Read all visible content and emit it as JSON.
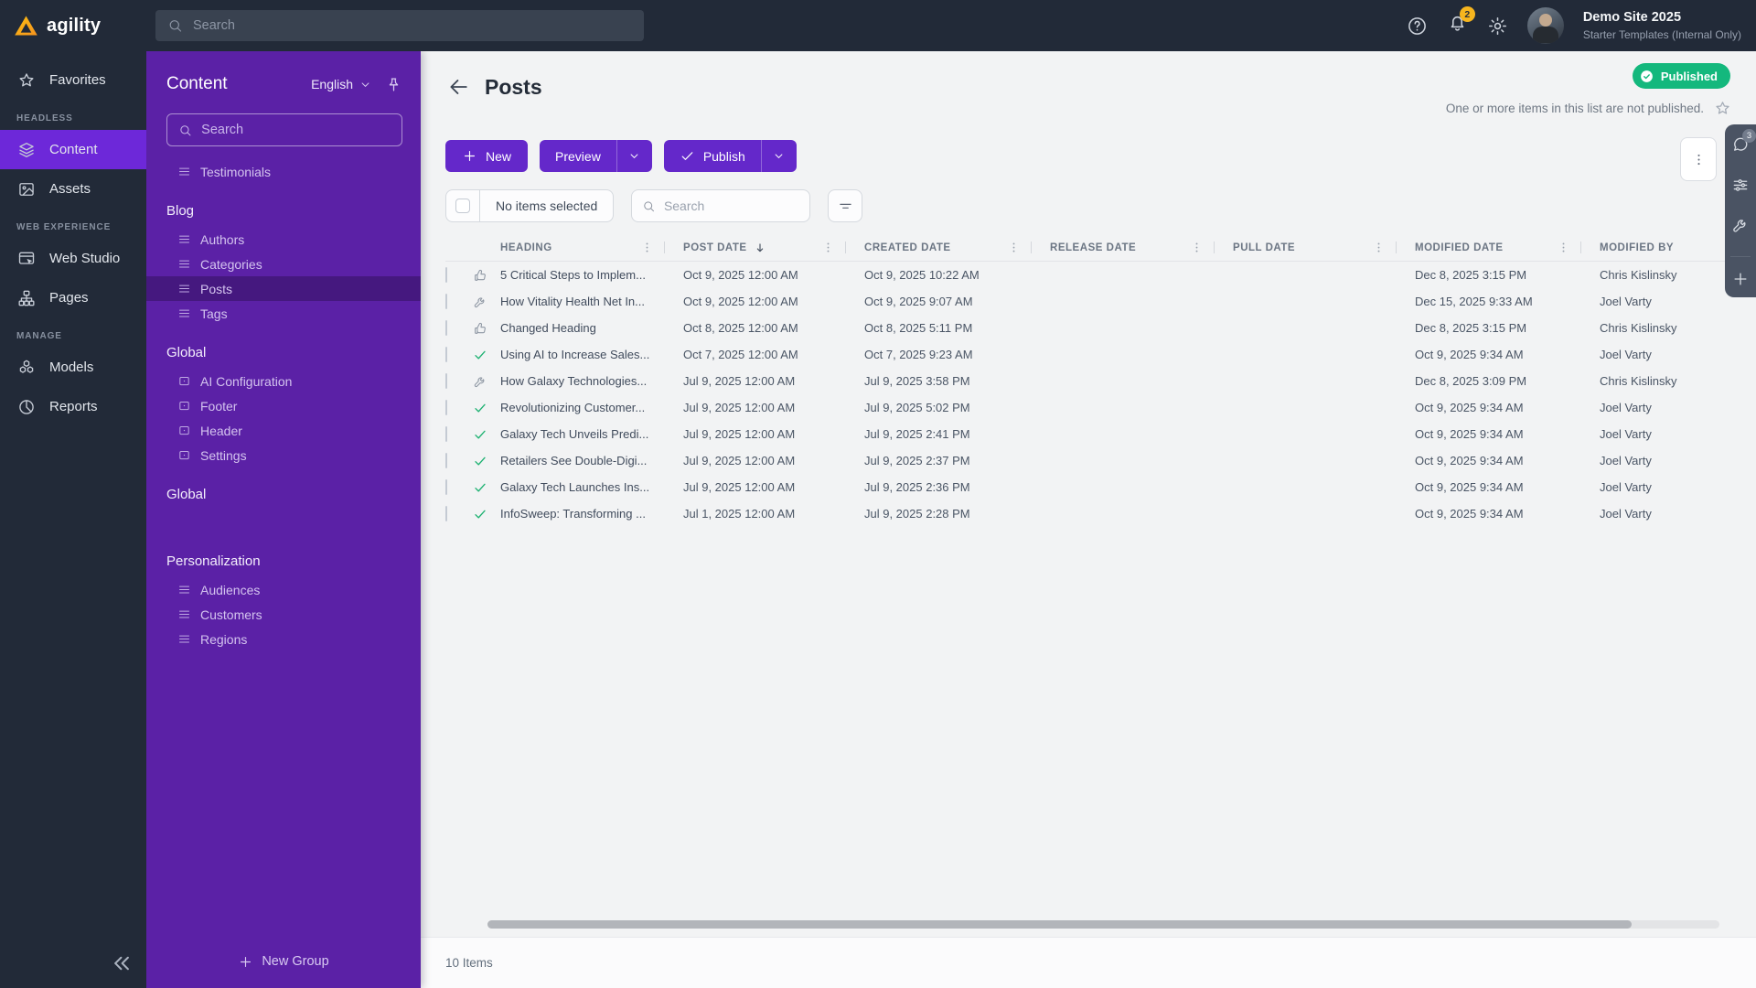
{
  "app": {
    "logo_text": "agility"
  },
  "topbar": {
    "search_placeholder": "Search",
    "notification_count": "2",
    "site_name": "Demo Site 2025",
    "site_plan": "Starter Templates (Internal Only)"
  },
  "left_nav": {
    "sections": [
      {
        "label": "",
        "items": [
          {
            "id": "favorites",
            "label": "Favorites",
            "icon": "star",
            "active": false
          }
        ]
      },
      {
        "label": "HEADLESS",
        "items": [
          {
            "id": "content",
            "label": "Content",
            "icon": "layers",
            "active": true
          },
          {
            "id": "assets",
            "label": "Assets",
            "icon": "image",
            "active": false
          }
        ]
      },
      {
        "label": "WEB EXPERIENCE",
        "items": [
          {
            "id": "web-studio",
            "label": "Web Studio",
            "icon": "browser",
            "active": false
          },
          {
            "id": "pages",
            "label": "Pages",
            "icon": "sitemap",
            "active": false
          }
        ]
      },
      {
        "label": "MANAGE",
        "items": [
          {
            "id": "models",
            "label": "Models",
            "icon": "cubes",
            "active": false
          },
          {
            "id": "reports",
            "label": "Reports",
            "icon": "pie",
            "active": false
          }
        ]
      }
    ]
  },
  "content_panel": {
    "title": "Content",
    "language": "English",
    "search_placeholder": "Search",
    "new_group_label": "New Group",
    "groups": [
      {
        "header": "",
        "items": [
          {
            "label": "Testimonials",
            "icon": "list",
            "active": false
          }
        ]
      },
      {
        "header": "Blog",
        "items": [
          {
            "label": "Authors",
            "icon": "list",
            "active": false
          },
          {
            "label": "Categories",
            "icon": "list",
            "active": false
          },
          {
            "label": "Posts",
            "icon": "list",
            "active": true
          },
          {
            "label": "Tags",
            "icon": "list",
            "active": false
          }
        ]
      },
      {
        "header": "Global",
        "items": [
          {
            "label": "AI Configuration",
            "icon": "single-item",
            "active": false
          },
          {
            "label": "Footer",
            "icon": "single-item",
            "active": false
          },
          {
            "label": "Header",
            "icon": "single-item",
            "active": false
          },
          {
            "label": "Settings",
            "icon": "single-item",
            "active": false
          }
        ]
      },
      {
        "header": "Global",
        "items": []
      },
      {
        "header": "Personalization",
        "items": [
          {
            "label": "Audiences",
            "icon": "list",
            "active": false
          },
          {
            "label": "Customers",
            "icon": "list",
            "active": false
          },
          {
            "label": "Regions",
            "icon": "list",
            "active": false
          }
        ]
      }
    ]
  },
  "main": {
    "title": "Posts",
    "status_badge": "Published",
    "status_note": "One or more items in this list are not published.",
    "toolbar": {
      "new_label": "New",
      "preview_label": "Preview",
      "publish_label": "Publish"
    },
    "filter_bar": {
      "selection_label": "No items selected",
      "search_placeholder": "Search"
    },
    "table": {
      "columns": [
        {
          "label": "HEADING",
          "sorted": ""
        },
        {
          "label": "POST DATE",
          "sorted": "desc"
        },
        {
          "label": "CREATED DATE",
          "sorted": ""
        },
        {
          "label": "RELEASE DATE",
          "sorted": ""
        },
        {
          "label": "PULL DATE",
          "sorted": ""
        },
        {
          "label": "MODIFIED DATE",
          "sorted": ""
        },
        {
          "label": "MODIFIED BY",
          "sorted": "",
          "last": true
        }
      ],
      "rows": [
        {
          "status": "thumb-up",
          "heading": "5 Critical Steps to Implem...",
          "post_date": "Oct 9, 2025 12:00 AM",
          "created_date": "Oct 9, 2025 10:22 AM",
          "release_date": "",
          "pull_date": "",
          "modified_date": "Dec 8, 2025 3:15 PM",
          "modified_by": "Chris Kislinsky"
        },
        {
          "status": "wrench",
          "heading": "How Vitality Health Net In...",
          "post_date": "Oct 9, 2025 12:00 AM",
          "created_date": "Oct 9, 2025 9:07 AM",
          "release_date": "",
          "pull_date": "",
          "modified_date": "Dec 15, 2025 9:33 AM",
          "modified_by": "Joel Varty"
        },
        {
          "status": "thumb-up",
          "heading": "Changed Heading",
          "post_date": "Oct 8, 2025 12:00 AM",
          "created_date": "Oct 8, 2025 5:11 PM",
          "release_date": "",
          "pull_date": "",
          "modified_date": "Dec 8, 2025 3:15 PM",
          "modified_by": "Chris Kislinsky"
        },
        {
          "status": "check",
          "heading": "Using AI to Increase Sales...",
          "post_date": "Oct 7, 2025 12:00 AM",
          "created_date": "Oct 7, 2025 9:23 AM",
          "release_date": "",
          "pull_date": "",
          "modified_date": "Oct 9, 2025 9:34 AM",
          "modified_by": "Joel Varty"
        },
        {
          "status": "wrench",
          "heading": "How Galaxy Technologies...",
          "post_date": "Jul 9, 2025 12:00 AM",
          "created_date": "Jul 9, 2025 3:58 PM",
          "release_date": "",
          "pull_date": "",
          "modified_date": "Dec 8, 2025 3:09 PM",
          "modified_by": "Chris Kislinsky"
        },
        {
          "status": "check",
          "heading": "Revolutionizing Customer...",
          "post_date": "Jul 9, 2025 12:00 AM",
          "created_date": "Jul 9, 2025 5:02 PM",
          "release_date": "",
          "pull_date": "",
          "modified_date": "Oct 9, 2025 9:34 AM",
          "modified_by": "Joel Varty"
        },
        {
          "status": "check",
          "heading": "Galaxy Tech Unveils Predi...",
          "post_date": "Jul 9, 2025 12:00 AM",
          "created_date": "Jul 9, 2025 2:41 PM",
          "release_date": "",
          "pull_date": "",
          "modified_date": "Oct 9, 2025 9:34 AM",
          "modified_by": "Joel Varty"
        },
        {
          "status": "check",
          "heading": "Retailers See Double-Digi...",
          "post_date": "Jul 9, 2025 12:00 AM",
          "created_date": "Jul 9, 2025 2:37 PM",
          "release_date": "",
          "pull_date": "",
          "modified_date": "Oct 9, 2025 9:34 AM",
          "modified_by": "Joel Varty"
        },
        {
          "status": "check",
          "heading": "Galaxy Tech Launches Ins...",
          "post_date": "Jul 9, 2025 12:00 AM",
          "created_date": "Jul 9, 2025 2:36 PM",
          "release_date": "",
          "pull_date": "",
          "modified_date": "Oct 9, 2025 9:34 AM",
          "modified_by": "Joel Varty"
        },
        {
          "status": "check",
          "heading": "InfoSweep: Transforming ...",
          "post_date": "Jul 1, 2025 12:00 AM",
          "created_date": "Jul 9, 2025 2:28 PM",
          "release_date": "",
          "pull_date": "",
          "modified_date": "Oct 9, 2025 9:34 AM",
          "modified_by": "Joel Varty"
        }
      ]
    },
    "footer": {
      "items_count": "10 Items"
    }
  },
  "right_rail": {
    "chat_badge": "3"
  },
  "colors": {
    "topbar_dark": "#222a38",
    "panel_purple": "#5b21a6",
    "active_purple": "#6d28d9",
    "button_purple": "#6428ca",
    "success_green": "#14b87d",
    "notification_yellow": "#f6b51e"
  }
}
